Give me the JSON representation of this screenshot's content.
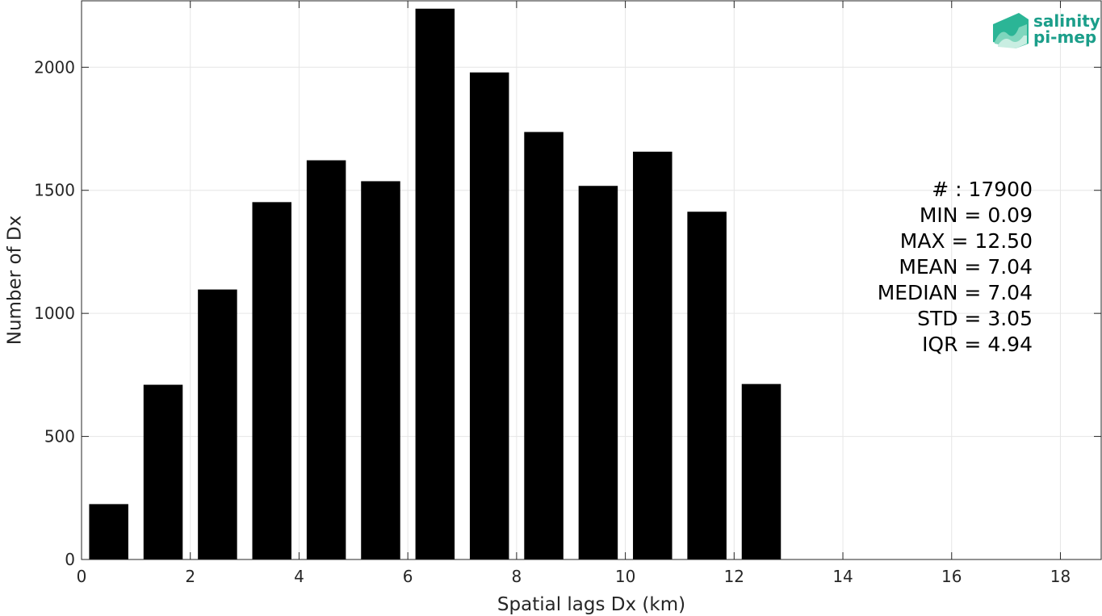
{
  "chart_data": {
    "type": "bar",
    "xlabel": "Spatial lags Dx (km)",
    "ylabel": "Number of Dx",
    "xlim": [
      0,
      18.75
    ],
    "ylim": [
      0,
      2270
    ],
    "xticks": [
      0,
      2,
      4,
      6,
      8,
      10,
      12,
      14,
      16,
      18
    ],
    "yticks": [
      0,
      500,
      1000,
      1500,
      2000
    ],
    "grid": true,
    "bar_width": 0.72,
    "bars": [
      {
        "x": 0.5,
        "value": 225
      },
      {
        "x": 1.5,
        "value": 710
      },
      {
        "x": 2.5,
        "value": 1097
      },
      {
        "x": 3.5,
        "value": 1452
      },
      {
        "x": 4.5,
        "value": 1622
      },
      {
        "x": 5.5,
        "value": 1537
      },
      {
        "x": 6.5,
        "value": 2238
      },
      {
        "x": 7.5,
        "value": 1979
      },
      {
        "x": 8.5,
        "value": 1737
      },
      {
        "x": 9.5,
        "value": 1518
      },
      {
        "x": 10.5,
        "value": 1657
      },
      {
        "x": 11.5,
        "value": 1413
      },
      {
        "x": 12.5,
        "value": 713
      }
    ],
    "bar_color": "#000000",
    "stats": [
      "# : 17900",
      "MIN = 0.09",
      "MAX =  12.50",
      "MEAN = 7.04",
      "MEDIAN = 7.04",
      "STD = 3.05",
      "IQR = 4.94"
    ]
  },
  "logo": {
    "line1": "salinity",
    "line2": "pi-mep",
    "color": "#1b9e8a"
  }
}
